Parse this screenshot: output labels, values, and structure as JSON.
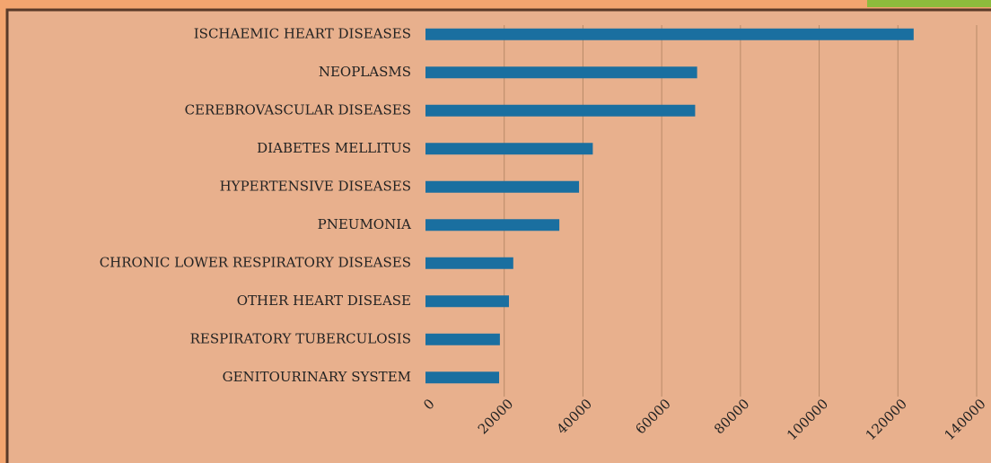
{
  "chart_data": {
    "type": "bar",
    "orientation": "horizontal",
    "categories": [
      "ISCHAEMIC HEART DISEASES",
      "NEOPLASMS",
      "CEREBROVASCULAR DISEASES",
      "DIABETES MELLITUS",
      "HYPERTENSIVE DISEASES",
      "PNEUMONIA",
      "CHRONIC LOWER RESPIRATORY DISEASES",
      "OTHER HEART DISEASE",
      "RESPIRATORY TUBERCULOSIS",
      "GENITOURINARY SYSTEM"
    ],
    "values": [
      124000,
      69000,
      68500,
      42500,
      39000,
      34000,
      22300,
      21200,
      18900,
      18700
    ],
    "color": "#1a6fa0",
    "xlim": [
      0,
      140000
    ],
    "xticks": [
      0,
      20000,
      40000,
      60000,
      80000,
      100000,
      120000,
      140000
    ],
    "grid": true
  }
}
